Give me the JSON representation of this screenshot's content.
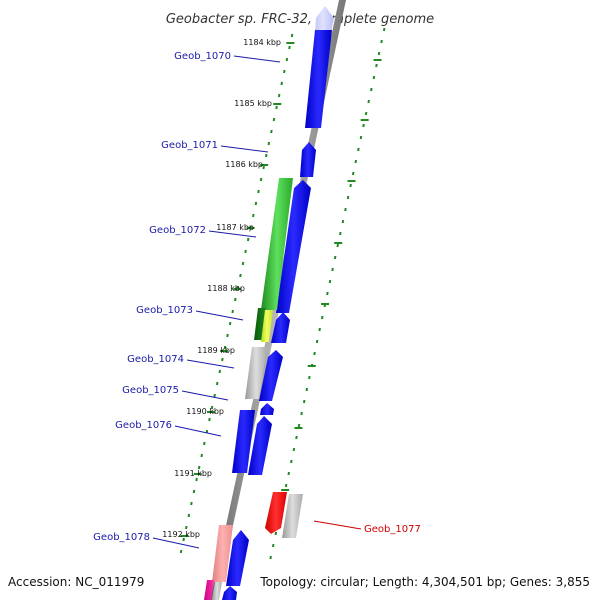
{
  "title": "Geobacter sp. FRC-32, complete genome",
  "accession": "Accession: NC_011979",
  "topology": "Topology: circular; Length: 4,304,501 bp; Genes: 3,855",
  "colors": {
    "forward": "#0000ee",
    "reverse": "#ee0000",
    "backbone": "#888888",
    "ticks": "#228822",
    "label_forward": "#1a1aaa",
    "label_reverse": "#cc0000"
  },
  "scale": [
    {
      "label": "1184 kbp",
      "kb": 1184
    },
    {
      "label": "1185 kbp",
      "kb": 1185
    },
    {
      "label": "1186 kbp",
      "kb": 1186
    },
    {
      "label": "1187 kbp",
      "kb": 1187
    },
    {
      "label": "1188 kbp",
      "kb": 1188
    },
    {
      "label": "1189 kbp",
      "kb": 1189
    },
    {
      "label": "1190 kbp",
      "kb": 1190
    },
    {
      "label": "1191 kbp",
      "kb": 1191
    },
    {
      "label": "1192 kbp",
      "kb": 1192
    }
  ],
  "gene_labels": [
    {
      "text": "Geob_1070",
      "strand": "forward"
    },
    {
      "text": "Geob_1071",
      "strand": "forward"
    },
    {
      "text": "Geob_1072",
      "strand": "forward"
    },
    {
      "text": "Geob_1073",
      "strand": "forward"
    },
    {
      "text": "Geob_1074",
      "strand": "forward"
    },
    {
      "text": "Geob_1075",
      "strand": "forward"
    },
    {
      "text": "Geob_1076",
      "strand": "forward"
    },
    {
      "text": "Geob_1077",
      "strand": "reverse"
    },
    {
      "text": "Geob_1078",
      "strand": "forward"
    }
  ]
}
